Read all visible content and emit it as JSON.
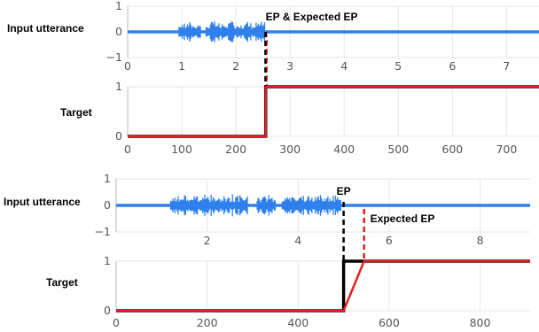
{
  "chart_data": [
    {
      "type": "line",
      "row_label": "Input utterance",
      "y_ticks": [
        "1",
        "0",
        "−1"
      ],
      "x_ticks": [
        "0",
        "1",
        "2",
        "3",
        "4",
        "5",
        "6",
        "7"
      ],
      "xlim": [
        0,
        7.6
      ],
      "ylim": [
        -1,
        1
      ],
      "series_color": "#2f80ed",
      "speech_segments": [
        [
          0.95,
          1.35
        ],
        [
          1.45,
          2.55
        ]
      ],
      "endpoint_line": {
        "x": 2.55,
        "color": "#000000",
        "overlay_color": "#e02020",
        "style": "dashed"
      },
      "annotation": "EP & Expected EP",
      "grid": true
    },
    {
      "type": "line",
      "row_label": "Target",
      "y_ticks": [
        "1",
        "0"
      ],
      "x_ticks": [
        "0",
        "100",
        "200",
        "300",
        "400",
        "500",
        "600",
        "700"
      ],
      "xlim": [
        0,
        760
      ],
      "ylim": [
        0,
        1
      ],
      "series": [
        {
          "color": "#000000",
          "x": [
            0,
            255,
            255,
            760
          ],
          "y": [
            0,
            0,
            1,
            1
          ]
        },
        {
          "color": "#e02020",
          "x": [
            0,
            255,
            255,
            760
          ],
          "y": [
            0,
            0,
            1,
            1
          ]
        }
      ],
      "grid": true
    },
    {
      "type": "line",
      "row_label": "Input utterance",
      "y_ticks": [
        "1",
        "0",
        "−1"
      ],
      "x_ticks": [
        "2",
        "4",
        "6",
        "8"
      ],
      "xlim": [
        0,
        9.1
      ],
      "ylim": [
        -1,
        1
      ],
      "series_color": "#2f80ed",
      "speech_segments": [
        [
          1.2,
          2.9
        ],
        [
          3.1,
          3.5
        ],
        [
          3.65,
          4.95
        ]
      ],
      "endpoint_lines": [
        {
          "x": 5.0,
          "color": "#000000",
          "style": "dashed",
          "label": "EP"
        },
        {
          "x": 5.45,
          "color": "#e02020",
          "style": "dashed",
          "label": "Expected EP"
        }
      ],
      "grid": true
    },
    {
      "type": "line",
      "row_label": "Target",
      "y_ticks": [
        "1",
        "0"
      ],
      "x_ticks": [
        "0",
        "200",
        "400",
        "600",
        "800"
      ],
      "xlim": [
        0,
        910
      ],
      "ylim": [
        0,
        1
      ],
      "series": [
        {
          "color": "#000000",
          "x": [
            0,
            500,
            500,
            910
          ],
          "y": [
            0,
            0,
            1,
            1
          ]
        },
        {
          "color": "#e02020",
          "x": [
            0,
            500,
            545,
            910
          ],
          "y": [
            0,
            0,
            1,
            1
          ]
        }
      ],
      "grid": true
    }
  ]
}
